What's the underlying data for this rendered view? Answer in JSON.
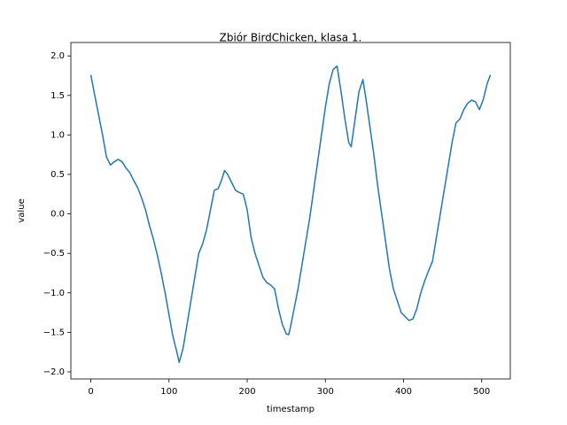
{
  "chart_data": {
    "type": "line",
    "title": "Zbiór BirdChicken, klasa 1.",
    "x_label": "timestamp",
    "y_label": "value",
    "x": [
      0,
      5,
      10,
      15,
      20,
      25,
      30,
      35,
      40,
      45,
      50,
      55,
      60,
      65,
      70,
      75,
      80,
      85,
      90,
      95,
      100,
      105,
      110,
      113,
      118,
      123,
      128,
      133,
      138,
      143,
      148,
      153,
      158,
      163,
      168,
      171,
      175,
      180,
      185,
      190,
      195,
      200,
      205,
      210,
      215,
      220,
      225,
      230,
      235,
      240,
      245,
      250,
      253,
      255,
      260,
      265,
      270,
      275,
      280,
      285,
      290,
      295,
      300,
      305,
      310,
      315,
      320,
      325,
      330,
      333,
      338,
      343,
      348,
      352,
      357,
      362,
      367,
      372,
      377,
      382,
      387,
      392,
      397,
      402,
      407,
      412,
      417,
      422,
      427,
      432,
      437,
      442,
      447,
      452,
      457,
      462,
      467,
      472,
      477,
      482,
      487,
      492,
      497,
      502,
      507,
      511
    ],
    "series": [
      {
        "name": "value",
        "color": "#1f77b4",
        "values": [
          1.76,
          1.5,
          1.25,
          1.0,
          0.72,
          0.62,
          0.66,
          0.69,
          0.66,
          0.58,
          0.52,
          0.42,
          0.33,
          0.2,
          0.05,
          -0.15,
          -0.32,
          -0.52,
          -0.75,
          -1.0,
          -1.28,
          -1.55,
          -1.75,
          -1.88,
          -1.7,
          -1.4,
          -1.1,
          -0.8,
          -0.5,
          -0.38,
          -0.2,
          0.05,
          0.3,
          0.32,
          0.45,
          0.55,
          0.5,
          0.4,
          0.3,
          0.27,
          0.25,
          0.05,
          -0.3,
          -0.5,
          -0.65,
          -0.8,
          -0.87,
          -0.9,
          -0.95,
          -1.2,
          -1.4,
          -1.52,
          -1.53,
          -1.45,
          -1.2,
          -0.95,
          -0.65,
          -0.35,
          -0.05,
          0.3,
          0.65,
          1.0,
          1.35,
          1.65,
          1.83,
          1.87,
          1.55,
          1.2,
          0.9,
          0.85,
          1.2,
          1.55,
          1.7,
          1.45,
          1.1,
          0.75,
          0.35,
          0.0,
          -0.35,
          -0.7,
          -0.95,
          -1.1,
          -1.25,
          -1.3,
          -1.35,
          -1.33,
          -1.2,
          -1.0,
          -0.85,
          -0.72,
          -0.6,
          -0.3,
          0.0,
          0.3,
          0.6,
          0.9,
          1.15,
          1.2,
          1.32,
          1.4,
          1.44,
          1.42,
          1.32,
          1.45,
          1.65,
          1.76
        ]
      }
    ],
    "xlim": [
      -25.55,
      536.55
    ],
    "ylim": [
      -2.09,
      2.17
    ],
    "xticks": [
      0,
      100,
      200,
      300,
      400,
      500
    ],
    "yticks": [
      {
        "value": -2,
        "label": "−2.0"
      },
      {
        "value": -1.5,
        "label": "−1.5"
      },
      {
        "value": -1,
        "label": "−1.0"
      },
      {
        "value": -0.5,
        "label": "−0.5"
      },
      {
        "value": 0,
        "label": "0.0"
      },
      {
        "value": 0.5,
        "label": "0.5"
      },
      {
        "value": 1,
        "label": "1.0"
      },
      {
        "value": 1.5,
        "label": "1.5"
      },
      {
        "value": 2,
        "label": "2.0"
      }
    ]
  }
}
